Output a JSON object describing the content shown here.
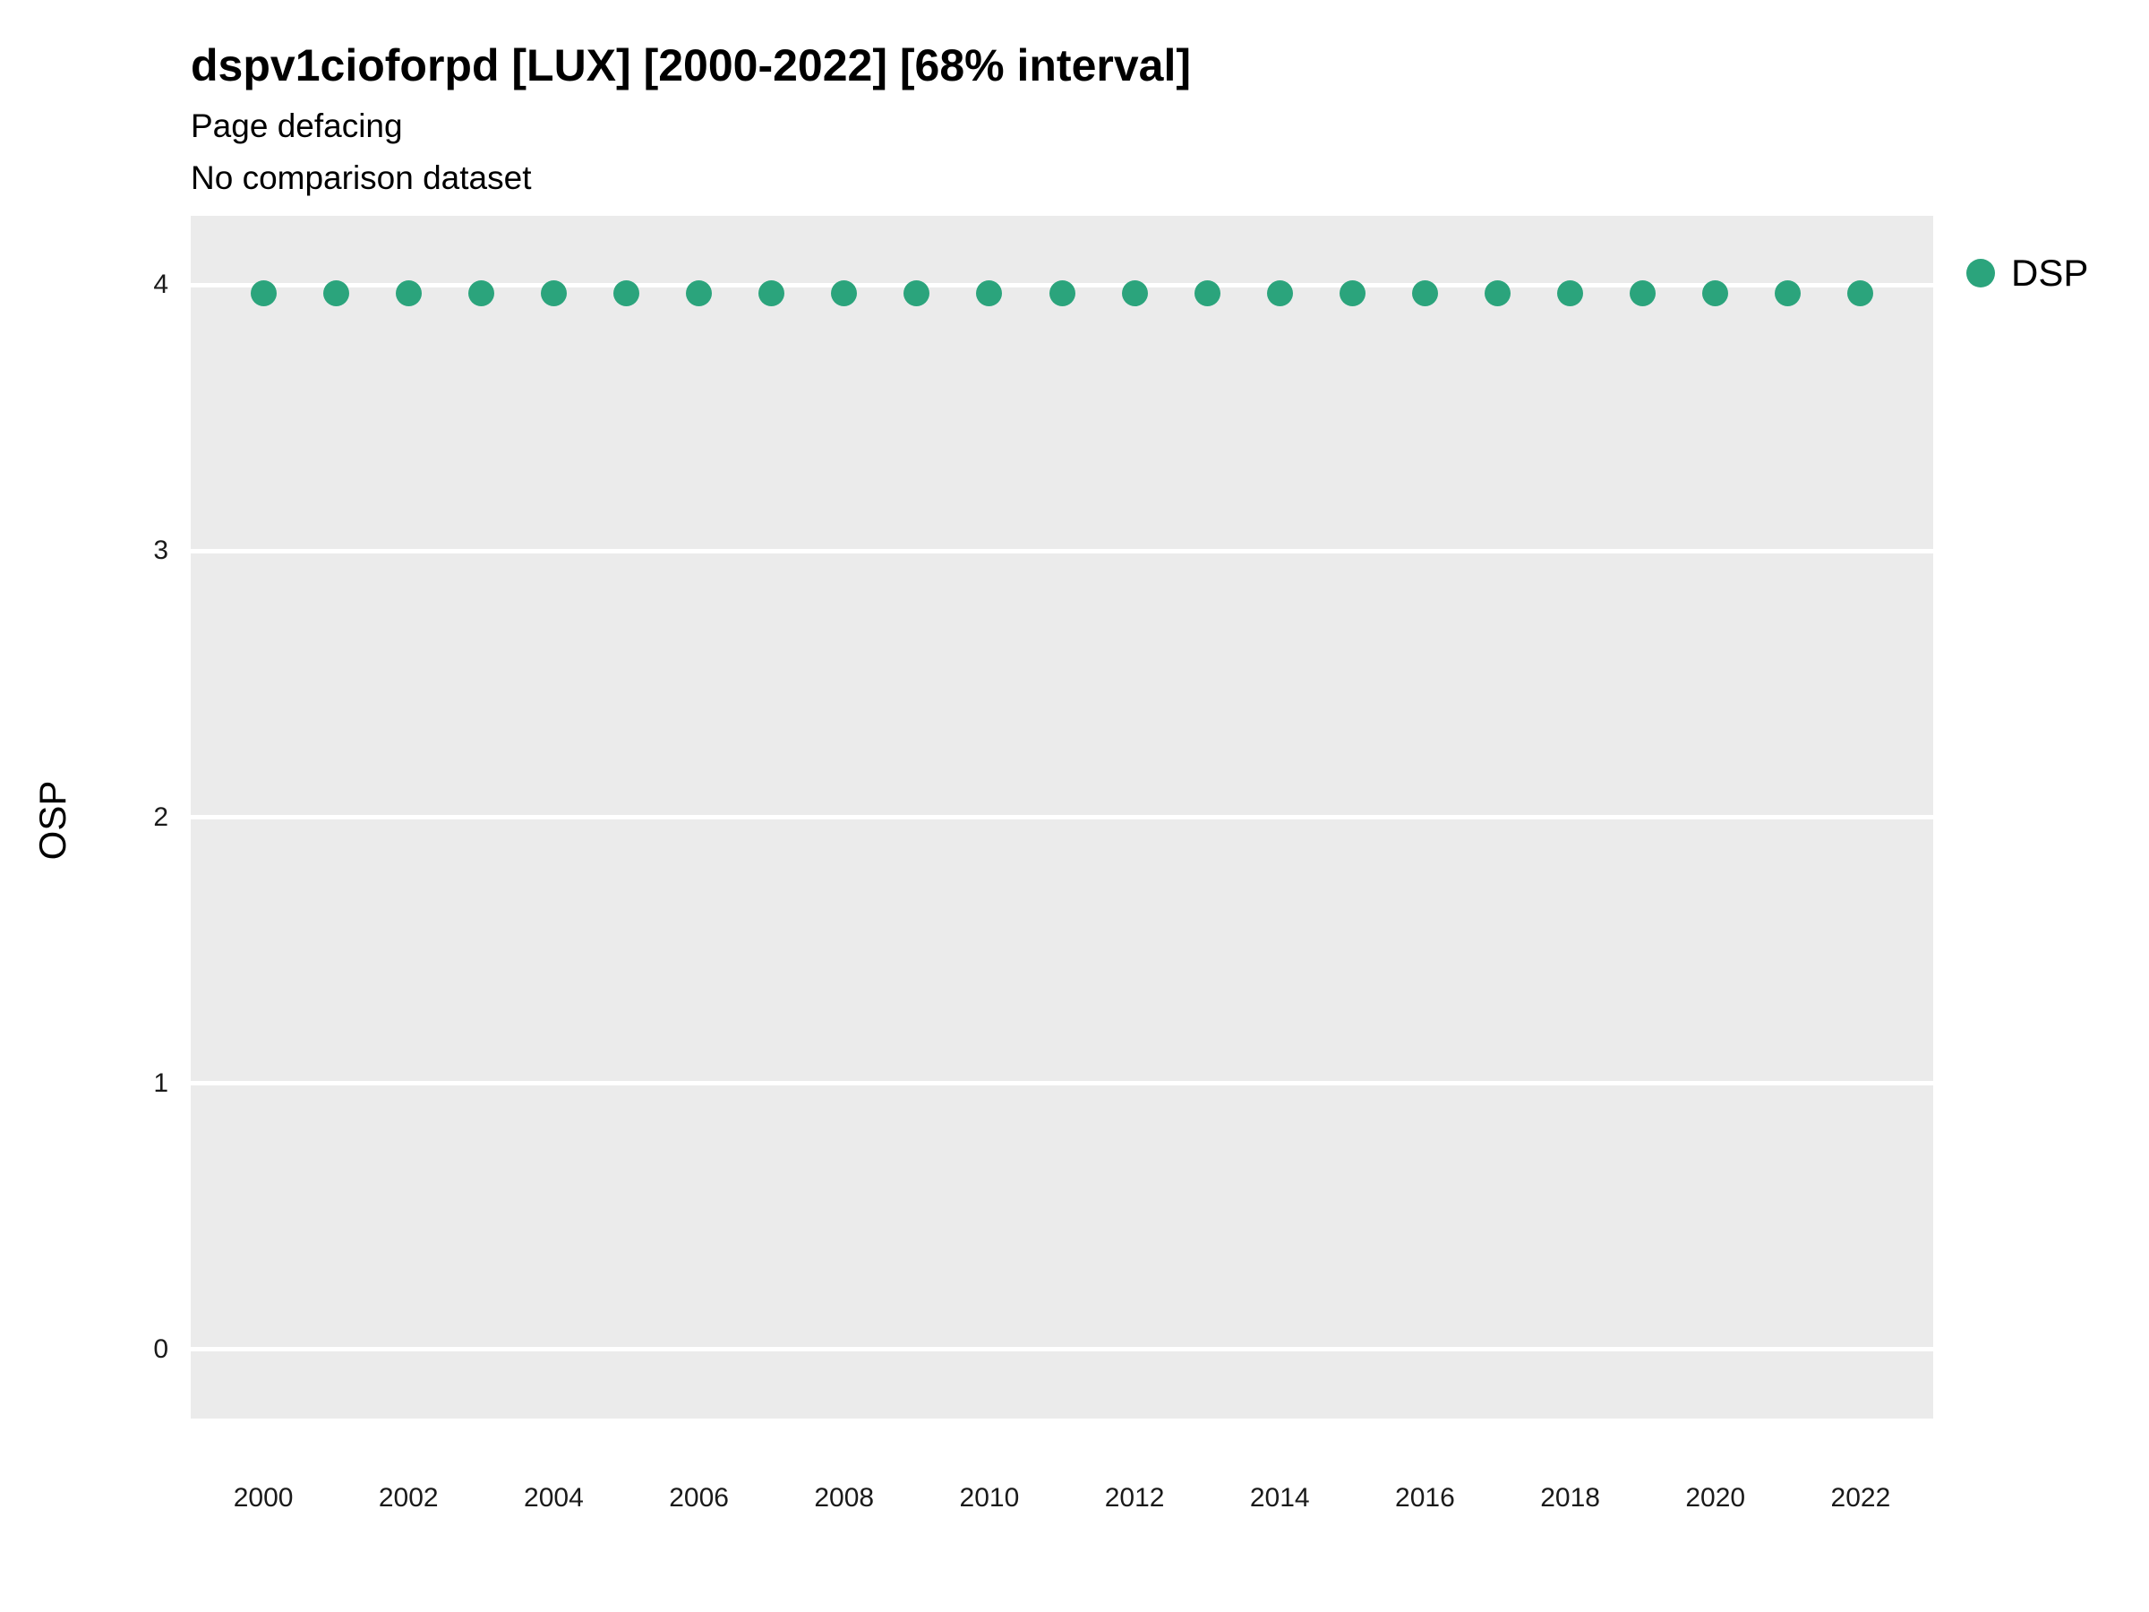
{
  "header": {
    "title": "dspv1cioforpd [LUX] [2000-2022] [68% interval]",
    "subtitle": "Page defacing",
    "note": "No comparison dataset"
  },
  "chart_data": {
    "type": "scatter",
    "title": "dspv1cioforpd [LUX] [2000-2022] [68% interval]",
    "subtitle": "Page defacing",
    "note": "No comparison dataset",
    "xlabel": "",
    "ylabel": "OSP",
    "xlim": [
      1999,
      2023
    ],
    "ylim": [
      -0.26,
      4.26
    ],
    "xticks": [
      2000,
      2002,
      2004,
      2006,
      2008,
      2010,
      2012,
      2014,
      2016,
      2018,
      2020,
      2022
    ],
    "yticks": [
      0,
      1,
      2,
      3,
      4
    ],
    "grid": "horizontal-white-on-gray",
    "panel_background": "#EBEBEB",
    "legend_position": "right-top",
    "series": [
      {
        "name": "DSP",
        "color": "#2BA47C",
        "marker": "circle",
        "x": [
          2000,
          2001,
          2002,
          2003,
          2004,
          2005,
          2006,
          2007,
          2008,
          2009,
          2010,
          2011,
          2012,
          2013,
          2014,
          2015,
          2016,
          2017,
          2018,
          2019,
          2020,
          2021,
          2022
        ],
        "y": [
          3.97,
          3.97,
          3.97,
          3.97,
          3.97,
          3.97,
          3.97,
          3.97,
          3.97,
          3.97,
          3.97,
          3.97,
          3.97,
          3.97,
          3.97,
          3.97,
          3.97,
          3.97,
          3.97,
          3.97,
          3.97,
          3.97,
          3.97
        ]
      }
    ]
  }
}
